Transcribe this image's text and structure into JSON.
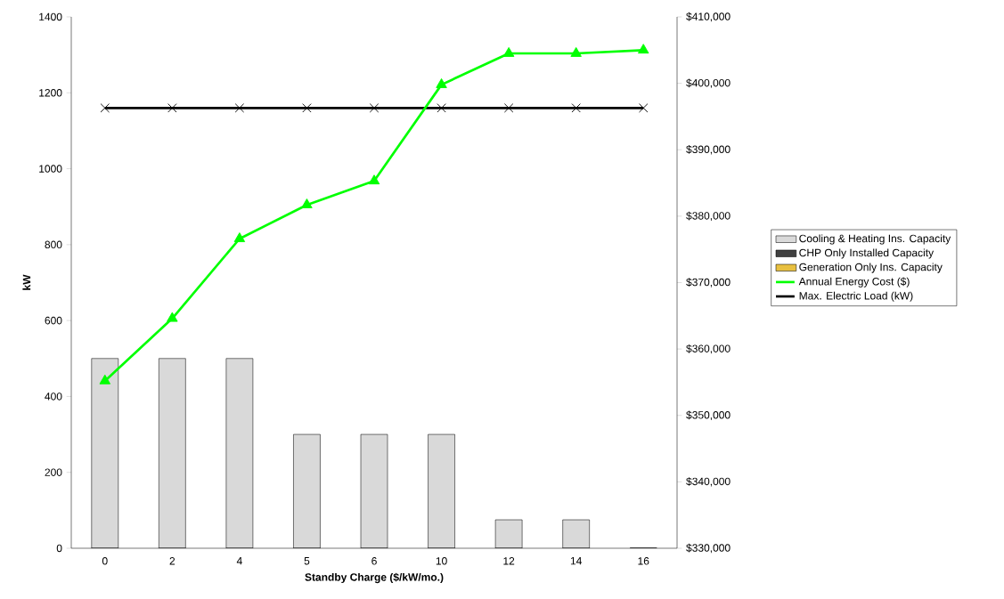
{
  "chart_data": {
    "type": "bar",
    "xlabel": "Standby Charge ($/kW/mo.)",
    "ylabel": "kW",
    "categories": [
      "0",
      "2",
      "4",
      "5",
      "6",
      "10",
      "12",
      "14",
      "16"
    ],
    "ylim": [
      0,
      1400
    ],
    "yticks": [
      0,
      200,
      400,
      600,
      800,
      1000,
      1200,
      1400
    ],
    "y2lim": [
      330000,
      410000
    ],
    "y2ticks": [
      {
        "value": 330000,
        "label": "$330,000"
      },
      {
        "value": 340000,
        "label": "$340,000"
      },
      {
        "value": 350000,
        "label": "$350,000"
      },
      {
        "value": 360000,
        "label": "$360,000"
      },
      {
        "value": 370000,
        "label": "$370,000"
      },
      {
        "value": 380000,
        "label": "$380,000"
      },
      {
        "value": 390000,
        "label": "$390,000"
      },
      {
        "value": 400000,
        "label": "$400,000"
      },
      {
        "value": 410000,
        "label": "$410,000"
      }
    ],
    "legend": "right",
    "series": [
      {
        "name": "Cooling & Heating Ins. Capacity",
        "color": "#d9d9d9",
        "values": [
          500,
          500,
          500,
          300,
          300,
          300,
          75,
          75,
          0
        ]
      },
      {
        "name": "CHP Only Installed Capacity",
        "color": "#404040",
        "values": [
          0,
          0,
          0,
          0,
          0,
          0,
          0,
          0,
          0
        ]
      },
      {
        "name": "Generation Only Ins. Capacity",
        "color": "#e8c040",
        "values": [
          0,
          0,
          0,
          0,
          0,
          0,
          0,
          0,
          0
        ]
      },
      {
        "name": "Annual Energy Cost ($)",
        "type": "line",
        "axis": "y2",
        "color": "#00ff00",
        "marker": "triangle",
        "line_style": "solid",
        "values": [
          355200,
          364600,
          376600,
          381700,
          385300,
          399800,
          404500,
          404500,
          405000
        ]
      },
      {
        "name": "Max. Electric Load (kW)",
        "type": "line",
        "color": "#000000",
        "marker": "cross",
        "line_style": "solid",
        "values": [
          1160,
          1160,
          1160,
          1160,
          1160,
          1160,
          1160,
          1160,
          1160
        ]
      }
    ]
  }
}
